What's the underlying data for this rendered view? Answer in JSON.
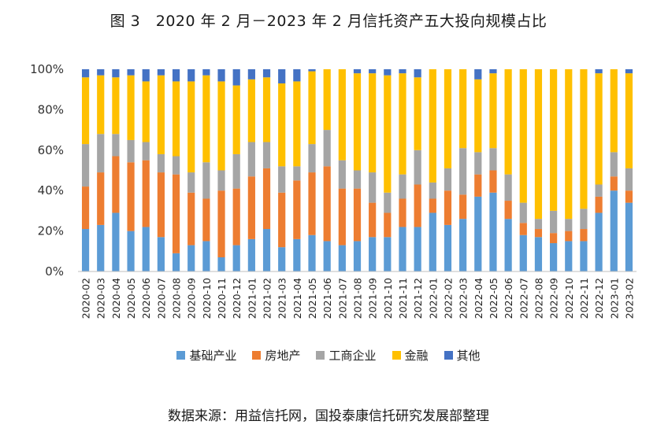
{
  "chart_data": {
    "type": "bar",
    "stacked": true,
    "title": "图 3　2020 年 2 月－2023 年 2 月信托资产五大投向规模占比",
    "xlabel": "",
    "ylabel": "",
    "ylim": [
      0,
      100
    ],
    "yticks": [
      "0%",
      "20%",
      "40%",
      "60%",
      "80%",
      "100%"
    ],
    "legend_position": "bottom",
    "grid": false,
    "categories": [
      "2020-02",
      "2020-03",
      "2020-04",
      "2020-05",
      "2020-06",
      "2020-07",
      "2020-08",
      "2020-09",
      "2020-10",
      "2020-11",
      "2020-12",
      "2021-01",
      "2021-02",
      "2021-03",
      "2021-04",
      "2021-05",
      "2021-06",
      "2021-07",
      "2021-08",
      "2021-09",
      "2021-10",
      "2021-11",
      "2021-12",
      "2022-01",
      "2022-02",
      "2022-03",
      "2022-04",
      "2022-05",
      "2022-06",
      "2022-07",
      "2022-08",
      "2022-09",
      "2022-10",
      "2022-11",
      "2022-12",
      "2023-01",
      "2023-02"
    ],
    "series": [
      {
        "name": "基础产业",
        "color": "#5B9BD5",
        "values": [
          21,
          23,
          29,
          20,
          22,
          17,
          9,
          13,
          15,
          7,
          13,
          16,
          21,
          12,
          16,
          18,
          15,
          13,
          15,
          17,
          17,
          22,
          22,
          29,
          23,
          26,
          37,
          39,
          26,
          18,
          17,
          14,
          15,
          15,
          29,
          40,
          34
        ]
      },
      {
        "name": "房地产",
        "color": "#ED7D31",
        "values": [
          21,
          26,
          28,
          34,
          33,
          32,
          39,
          26,
          21,
          33,
          28,
          31,
          30,
          27,
          29,
          31,
          37,
          28,
          26,
          17,
          12,
          14,
          21,
          7,
          17,
          12,
          11,
          11,
          9,
          6,
          4,
          5,
          5,
          6,
          8,
          7,
          6
        ]
      },
      {
        "name": "工商企业",
        "color": "#A5A5A5",
        "values": [
          21,
          19,
          11,
          11,
          9,
          9,
          9,
          10,
          18,
          10,
          17,
          17,
          13,
          13,
          7,
          14,
          18,
          14,
          9,
          15,
          10,
          12,
          17,
          8,
          11,
          23,
          11,
          11,
          13,
          10,
          5,
          11,
          6,
          10,
          6,
          12,
          11
        ]
      },
      {
        "name": "金融",
        "color": "#FFC000",
        "values": [
          33,
          29,
          28,
          32,
          30,
          39,
          37,
          45,
          43,
          44,
          34,
          31,
          32,
          41,
          42,
          36,
          30,
          45,
          48,
          49,
          58,
          50,
          36,
          56,
          49,
          39,
          36,
          37,
          52,
          66,
          74,
          70,
          74,
          69,
          55,
          41,
          47
        ]
      },
      {
        "name": "其他",
        "color": "#4472C4",
        "values": [
          4,
          3,
          4,
          3,
          6,
          3,
          6,
          6,
          3,
          6,
          8,
          5,
          4,
          7,
          6,
          1,
          0,
          0,
          2,
          2,
          3,
          2,
          4,
          0,
          0,
          0,
          5,
          2,
          0,
          0,
          0,
          0,
          0,
          0,
          2,
          0,
          2
        ]
      }
    ],
    "source": "数据来源：用益信托网，国投泰康信托研究发展部整理"
  }
}
